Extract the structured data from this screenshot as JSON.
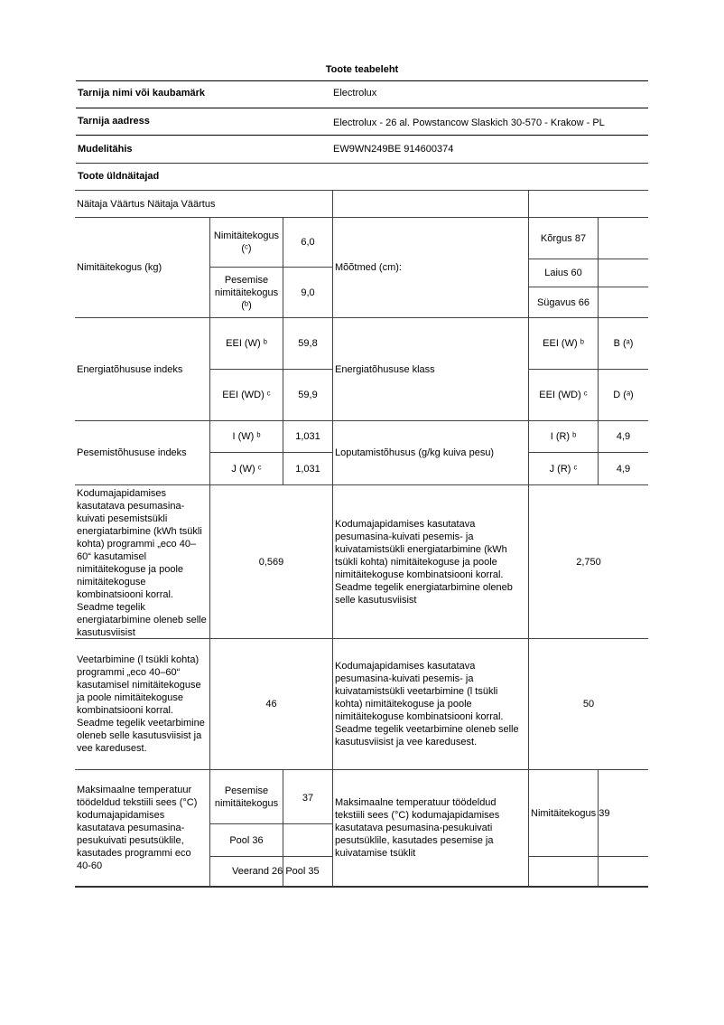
{
  "title": "Toote teabeleht",
  "rows": {
    "supplier_label": "Tarnija nimi või kaubamärk",
    "supplier_value": "Electrolux",
    "address_label": "Tarnija aadress",
    "address_value": "Electrolux - 26 al. Powstancow Slaskich 30-570 - Krakow - PL",
    "model_label": "Mudelitähis",
    "model_value": "EW9WN249BE 914600374",
    "general_label": "Toote üldnäitajad"
  },
  "table": {
    "header": "Näitaja Väärtus Näitaja Väärtus",
    "capacity_label": "Nimitäitekogus (kg)",
    "cap_c_label": "Nimitäitekogus (ᶜ)",
    "cap_c_value": "6,0",
    "cap_b_label": "Pesemise nimitäitekogus (ᵇ)",
    "cap_b_value": "9,0",
    "dimensions_label": "Mõõtmed (cm):",
    "height": "Kõrgus 87",
    "width": "Laius 60",
    "depth": "Sügavus 66",
    "eei_label": "Energiatõhususe indeks",
    "eei_w_label": "EEI (W) ᵇ",
    "eei_w_value": "59,8",
    "eei_wd_label": "EEI (WD) ᶜ",
    "eei_wd_value": "59,9",
    "eclass_label": "Energiatõhususe klass",
    "eclass_w_label": "EEI (W) ᵇ",
    "eclass_w_value": "B (ᵃ)",
    "eclass_wd_label": "EEI (WD) ᶜ",
    "eclass_wd_value": "D (ᵃ)",
    "wash_label": "Pesemistõhususe indeks",
    "iw_label": "I (W) ᵇ",
    "iw_value": "1,031",
    "jw_label": "J (W) ᶜ",
    "jw_value": "1,031",
    "rinse_label": "Loputamistõhusus (g/kg kuiva pesu)",
    "ir_label": "I (R) ᵇ",
    "ir_value": "4,9",
    "jr_label": "J (R) ᶜ",
    "jr_value": "4,9",
    "energy_wash_label": "Kodumajapidamises kasutatava pesumasina-kuivati pesemistsükli energiatarbimine (kWh tsükli kohta) programmi „eco 40–60“ kasutamisel nimitäitekoguse ja poole nimitäitekoguse kombinatsiooni korral. Seadme tegelik energiatarbimine oleneb selle kasutusviisist",
    "energy_wash_value": "0,569",
    "energy_wd_label": "Kodumajapidamises kasutatava pesumasina-kuivati pesemis- ja kuivatamistsükli energiatarbimine (kWh tsükli kohta) nimitäitekoguse ja poole nimitäitekoguse kombinatsiooni korral. Seadme tegelik energiatarbimine oleneb selle kasutusviisist",
    "energy_wd_value": "2,750",
    "water_wash_label": "Veetarbimine (l tsükli kohta) programmi „eco 40–60“ kasutamisel nimitäitekoguse ja poole nimitäitekoguse kombinatsiooni korral. Seadme tegelik veetarbimine oleneb selle kasutusviisist ja vee karedusest.",
    "water_wash_value": "46",
    "water_wd_label": "Kodumajapidamises kasutatava pesumasina-kuivati pesemis- ja kuivatamistsükli veetarbimine (l tsükli kohta) nimitäitekoguse ja poole nimitäitekoguse kombinatsiooni korral. Seadme tegelik veetarbimine oleneb selle kasutusviisist ja vee karedusest.",
    "water_wd_value": "50",
    "temp_wash_label": "Maksimaalne temperatuur töödeldud tekstiili sees (°C) kodumajapidamises kasutatava pesumasina-pesukuivati pesutsüklile, kasutades programmi eco 40-60",
    "temp_full_label": "Pesemise nimitäitekogus",
    "temp_full_value": "37",
    "temp_half": "Pool 36",
    "temp_quarter": "Veerand 26 Pool 35",
    "temp_wd_label": "Maksimaalne temperatuur töödeldud tekstiili sees (°C) kodumajapidamises kasutatava pesumasina-pesukuivati pesutsüklile, kasutades pesemise ja kuivatamise tsüklit",
    "temp_wd_cap": "Nimitäitekogus 39"
  }
}
